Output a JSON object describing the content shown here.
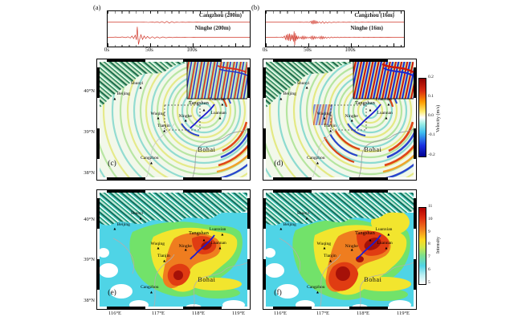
{
  "figure_labels": {
    "a": "(a)",
    "b": "(b)",
    "c": "(c)",
    "d": "(d)",
    "e": "(e)",
    "f": "(f)"
  },
  "seismograms": {
    "x_ticks": [
      "0s",
      "50s",
      "100s"
    ],
    "panel_a": {
      "trace1": "Cangzhou (200m)",
      "trace2": "Ninghe (200m)"
    },
    "panel_b": {
      "trace1": "Cangzhou (16m)",
      "trace2": "Ninghe (16m)"
    }
  },
  "maps": {
    "cities": [
      "Shunyi",
      "Beijing",
      "Wuqing",
      "Tianjin",
      "Ninghe",
      "Tangshan",
      "Luanxian",
      "Luannan",
      "Cangzhou"
    ],
    "sea_label": "Bohai",
    "lat_ticks": [
      "40°N",
      "39°N",
      "38°N"
    ],
    "lon_ticks": [
      "116°E",
      "117°E",
      "118°E",
      "119°E"
    ]
  },
  "colorbars": {
    "velocity": {
      "label": "Velocity (m/s)",
      "ticks": [
        "0.2",
        "0.1",
        "0.0",
        "-0.1",
        "-0.2"
      ]
    },
    "intensity": {
      "label": "Intensity",
      "ticks": [
        "11",
        "10",
        "9",
        "8",
        "7",
        "6",
        "5"
      ]
    }
  },
  "colors": {
    "trace_red": "#d23b2e",
    "fault_blue": "#1b1bd0",
    "intensity_palette": {
      "5": "#ffffff",
      "6": "#4fd4e6",
      "7": "#72e26a",
      "8": "#f2e52e",
      "9": "#ef7d1f",
      "10": "#e03c12",
      "11": "#a51108"
    },
    "velocity_range": [
      "-0.2",
      "0.2"
    ]
  },
  "waveforms": {
    "a1": "0,13 30,13 45,12.7 50,13.3 55,12.8 58,13.4 61,12.5 64,13.6 67,12.3 70,13.8 73,12.1 76,14 79,12.3 82,13.6 85,12.8 88,13.3 92,12.9 96,13.2 100,12.9 105,13.1 110,12.9 116,13.1 122,13 130,13 175,13",
    "a2": "0,31 6,31 10,30.7 14,31.3 18,30.6 22,31.4 25,30.4 28,31.8 30,29.5 32,32.5 34,28.5 35.5,34 36.5,18.5 38,39.5 39.5,33 41,28 43,33.5 45,29.5 47,32.5 49,30 52,32.3 55,30.3 58,32 61,30.5 64,31.8 68,30.6 72,31.6 76,30.8 80,31.4 85,30.8 90,31.3 95,30.9 100,31.2 106,30.9 112,31.1 120,31 130,31 140,31 175,31",
    "b1": "0,13 38,13 44,12.8 48,13.2 52,12.8 55,13.3 57,12 58,14.5 59,11 60,15.5 61,10.5 62,15 63,11.5 64,14.5 65,12 66,14 68,12.5 70,14.2 72,12.2 74,14.4 76,12.6 78,13.9 80,12.8 83,13.6 86,12.9 89,13.4 92,12.8 95,13.3 98,12.9 102,13.2 106,12.8 110,13.3 114,12.9 118,13.2 122,12.9 126,13.1 130,12.9 134,13.1 139,12.95 144,13.05 150,12.95 156,13.05 163,13 175,13",
    "b2": "0,31 10,31 14,30.8 17,31.2 20,30.7 22,31.5 23.5,29.5 25,33.5 26,28 27,34.5 28,27 29,35 30,26.5 31,35.5 32,27.5 33,34 34,28 35,36 35.8,24 36.6,40.5 37.4,26 38.2,35 39,29 40,33.5 41,30 42,32.5 43.5,30.5 45,32.8 46,29.8 47,33.2 48,29.7 49,33 50,30.2 51,32.5 52,30.5 53.5,32 55,30.8 56.5,32.2 57.5,29.8 58.5,33.4 59.5,29.6 60.5,33.2 61.5,30 62.5,32.6 63.5,30.4 65,32.2 66.5,30.6 68,32.4 69,30 70,33 71,29.8 72,32.8 73,30.2 74,32.4 75.5,30.6 77,32 79,30.8 81,31.8 83,30.6 85,31.6 87,30.8 89,31.4 91,30.7 93,31.5 95,30.8 97,31.3 100,30.8 103,31.3 106,30.9 109,31.2 112,30.8 115,31.3 118,30.9 121,31.2 124,30.9 127,31.15 130,30.9 133,31.1 137,30.9 141,31.1 145,30.95 150,31.05 155,30.95 160,31.05 166,31 175,31"
  },
  "chart_data": [
    {
      "type": "line",
      "panel": "(a)",
      "series": [
        {
          "name": "Cangzhou (200m)",
          "color": "#d23b2e"
        },
        {
          "name": "Ninghe (200m)",
          "color": "#d23b2e"
        }
      ],
      "x_ticks": [
        "0s",
        "50s",
        "100s"
      ],
      "x_range_s": [
        0,
        150
      ],
      "notes": "Ninghe: large impulsive arrival near 30s then decaying coda; Cangzhou: weak long-period arrival near 60-80s"
    },
    {
      "type": "line",
      "panel": "(b)",
      "series": [
        {
          "name": "Cangzhou (16m)",
          "color": "#d23b2e"
        },
        {
          "name": "Ninghe (16m)",
          "color": "#d23b2e"
        }
      ],
      "x_ticks": [
        "0s",
        "50s",
        "100s"
      ],
      "x_range_s": [
        0,
        150
      ],
      "notes": "High-frequency version: Ninghe strong bursts 25-40s and packets 45-75s; Cangzhou burst near 55-65s"
    },
    {
      "type": "heatmap",
      "panel": "(c)",
      "description": "wavefield snapshot (200m model), concentric wavefronts centered near Tangshan with inset zoom and dashed study box",
      "colorbar_label": "Velocity (m/s)",
      "value_range": [
        -0.2,
        0.2
      ],
      "colorbar_ticks": [
        0.2,
        0.1,
        0.0,
        -0.1,
        -0.2
      ],
      "y_ticks": [
        "40°N",
        "39°N",
        "38°N"
      ]
    },
    {
      "type": "heatmap",
      "panel": "(d)",
      "description": "wavefield snapshot (16m model), stronger short-wavelength stripes",
      "colorbar_label": "Velocity (m/s)",
      "value_range": [
        -0.2,
        0.2
      ],
      "colorbar_ticks": [
        0.2,
        0.1,
        0.0,
        -0.1,
        -0.2
      ],
      "y_ticks": [
        "40°N",
        "39°N",
        "38°N"
      ]
    },
    {
      "type": "heatmap",
      "panel": "(e)",
      "description": "simulated seismic intensity map (200m model); max intensity 11 near Tangshan fault",
      "colorbar_label": "Intensity",
      "value_range": [
        5,
        11
      ],
      "colorbar_ticks": [
        11,
        10,
        9,
        8,
        7,
        6,
        5
      ],
      "x_ticks": [
        "116°E",
        "117°E",
        "118°E",
        "119°E"
      ],
      "y_ticks": [
        "40°N",
        "39°N",
        "38°N"
      ]
    },
    {
      "type": "heatmap",
      "panel": "(f)",
      "description": "simulated seismic intensity map (16m model); larger high-intensity area",
      "colorbar_label": "Intensity",
      "value_range": [
        5,
        11
      ],
      "colorbar_ticks": [
        11,
        10,
        9,
        8,
        7,
        6,
        5
      ],
      "x_ticks": [
        "116°E",
        "117°E",
        "118°E",
        "119°E"
      ],
      "y_ticks": [
        "40°N",
        "39°N",
        "38°N"
      ]
    }
  ]
}
